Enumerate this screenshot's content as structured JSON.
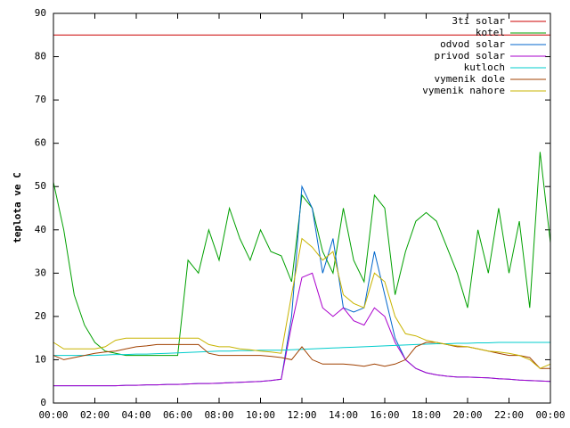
{
  "chart_data": {
    "type": "line",
    "ylabel": "teplota ve C",
    "x": [
      0,
      0.5,
      1,
      1.5,
      2,
      2.5,
      3,
      3.5,
      4,
      4.5,
      5,
      5.5,
      6,
      6.5,
      7,
      7.5,
      8,
      8.5,
      9,
      9.5,
      10,
      10.5,
      11,
      11.5,
      12,
      12.5,
      13,
      13.5,
      14,
      14.5,
      15,
      15.5,
      16,
      16.5,
      17,
      17.5,
      18,
      18.5,
      19,
      19.5,
      20,
      20.5,
      21,
      21.5,
      22,
      22.5,
      23,
      23.5,
      24
    ],
    "xlim": [
      0,
      24
    ],
    "xticks": [
      {
        "value": 0,
        "label": "00:00"
      },
      {
        "value": 2,
        "label": "02:00"
      },
      {
        "value": 4,
        "label": "04:00"
      },
      {
        "value": 6,
        "label": "06:00"
      },
      {
        "value": 8,
        "label": "08:00"
      },
      {
        "value": 10,
        "label": "10:00"
      },
      {
        "value": 12,
        "label": "12:00"
      },
      {
        "value": 14,
        "label": "14:00"
      },
      {
        "value": 16,
        "label": "16:00"
      },
      {
        "value": 18,
        "label": "18:00"
      },
      {
        "value": 20,
        "label": "20:00"
      },
      {
        "value": 22,
        "label": "22:00"
      },
      {
        "value": 24,
        "label": "00:00"
      }
    ],
    "ylim": [
      0,
      90
    ],
    "yticks": [
      0,
      10,
      20,
      30,
      40,
      50,
      60,
      70,
      80,
      90
    ],
    "legend": "top-right",
    "series": [
      {
        "name": "3ti solar",
        "color": "#cc0000",
        "values": [
          85,
          85,
          85,
          85,
          85,
          85,
          85,
          85,
          85,
          85,
          85,
          85,
          85,
          85,
          85,
          85,
          85,
          85,
          85,
          85,
          85,
          85,
          85,
          85,
          85,
          85,
          85,
          85,
          85,
          85,
          85,
          85,
          85,
          85,
          85,
          85,
          85,
          85,
          85,
          85,
          85,
          85,
          85,
          85,
          85,
          85,
          85,
          85,
          85
        ]
      },
      {
        "name": "kotel",
        "color": "#00a000",
        "values": [
          51,
          40,
          25,
          18,
          14,
          12,
          11.5,
          11,
          11,
          11,
          11,
          11,
          11,
          33,
          30,
          40,
          33,
          45,
          38,
          33,
          40,
          35,
          34,
          28,
          48,
          45,
          35,
          30,
          45,
          33,
          28,
          48,
          45,
          25,
          35,
          42,
          44,
          42,
          36,
          30,
          22,
          40,
          30,
          45,
          30,
          42,
          22,
          58,
          37
        ]
      },
      {
        "name": "odvod solar",
        "color": "#0066cc",
        "values": [
          4,
          4,
          4,
          4,
          4,
          4,
          4,
          4.1,
          4.1,
          4.2,
          4.2,
          4.3,
          4.3,
          4.4,
          4.5,
          4.5,
          4.6,
          4.7,
          4.8,
          4.9,
          5,
          5.2,
          5.5,
          20,
          50,
          45,
          30,
          38,
          22,
          21,
          22,
          35,
          25,
          15,
          10,
          8,
          7,
          6.5,
          6.2,
          6,
          6,
          5.9,
          5.8,
          5.6,
          5.5,
          5.3,
          5.2,
          5.1,
          5
        ]
      },
      {
        "name": "privod solar",
        "color": "#aa00cc",
        "values": [
          4,
          4,
          4,
          4,
          4,
          4,
          4,
          4.1,
          4.1,
          4.2,
          4.2,
          4.3,
          4.3,
          4.4,
          4.5,
          4.5,
          4.6,
          4.7,
          4.8,
          4.9,
          5,
          5.2,
          5.5,
          18,
          29,
          30,
          22,
          20,
          22,
          19,
          18,
          22,
          20,
          14,
          10,
          8,
          7,
          6.5,
          6.2,
          6,
          6,
          5.9,
          5.8,
          5.6,
          5.5,
          5.3,
          5.2,
          5.1,
          5
        ]
      },
      {
        "name": "kutloch",
        "color": "#00cccc",
        "values": [
          11,
          11,
          11,
          11,
          11,
          11.1,
          11.2,
          11.2,
          11.3,
          11.3,
          11.4,
          11.5,
          11.6,
          11.7,
          11.8,
          11.9,
          12,
          12,
          12.1,
          12.1,
          12.2,
          12.2,
          12.2,
          12.3,
          12.4,
          12.5,
          12.6,
          12.7,
          12.8,
          12.9,
          13,
          13.1,
          13.2,
          13.3,
          13.4,
          13.5,
          13.6,
          13.7,
          13.7,
          13.8,
          13.8,
          13.9,
          13.9,
          14,
          14,
          14,
          14,
          14,
          14
        ]
      },
      {
        "name": "vymenik dole",
        "color": "#a04000",
        "values": [
          11,
          10,
          10.5,
          11,
          11.5,
          11.8,
          12,
          12.5,
          13,
          13.2,
          13.5,
          13.5,
          13.5,
          13.5,
          13.5,
          11.5,
          11,
          11,
          11,
          11,
          11,
          10.8,
          10.5,
          10,
          13,
          10,
          9,
          9,
          9,
          8.8,
          8.5,
          9,
          8.5,
          9,
          10,
          13,
          14,
          14,
          13.5,
          13,
          13,
          12.5,
          12,
          11.5,
          11,
          11,
          10.5,
          8,
          8
        ]
      },
      {
        "name": "vymenik nahore",
        "color": "#c8b400",
        "values": [
          14,
          12.5,
          12.5,
          12.5,
          12.5,
          13,
          14.5,
          15,
          15,
          15,
          15,
          15,
          15,
          15,
          15,
          13.5,
          13,
          13,
          12.5,
          12.3,
          12,
          11.8,
          11.5,
          25,
          38,
          36,
          33,
          35,
          25,
          23,
          22,
          30,
          28,
          20,
          16,
          15.5,
          14.5,
          14,
          13.5,
          13.2,
          13,
          12.5,
          12,
          11.8,
          11.5,
          11,
          10,
          8,
          9
        ]
      }
    ]
  }
}
